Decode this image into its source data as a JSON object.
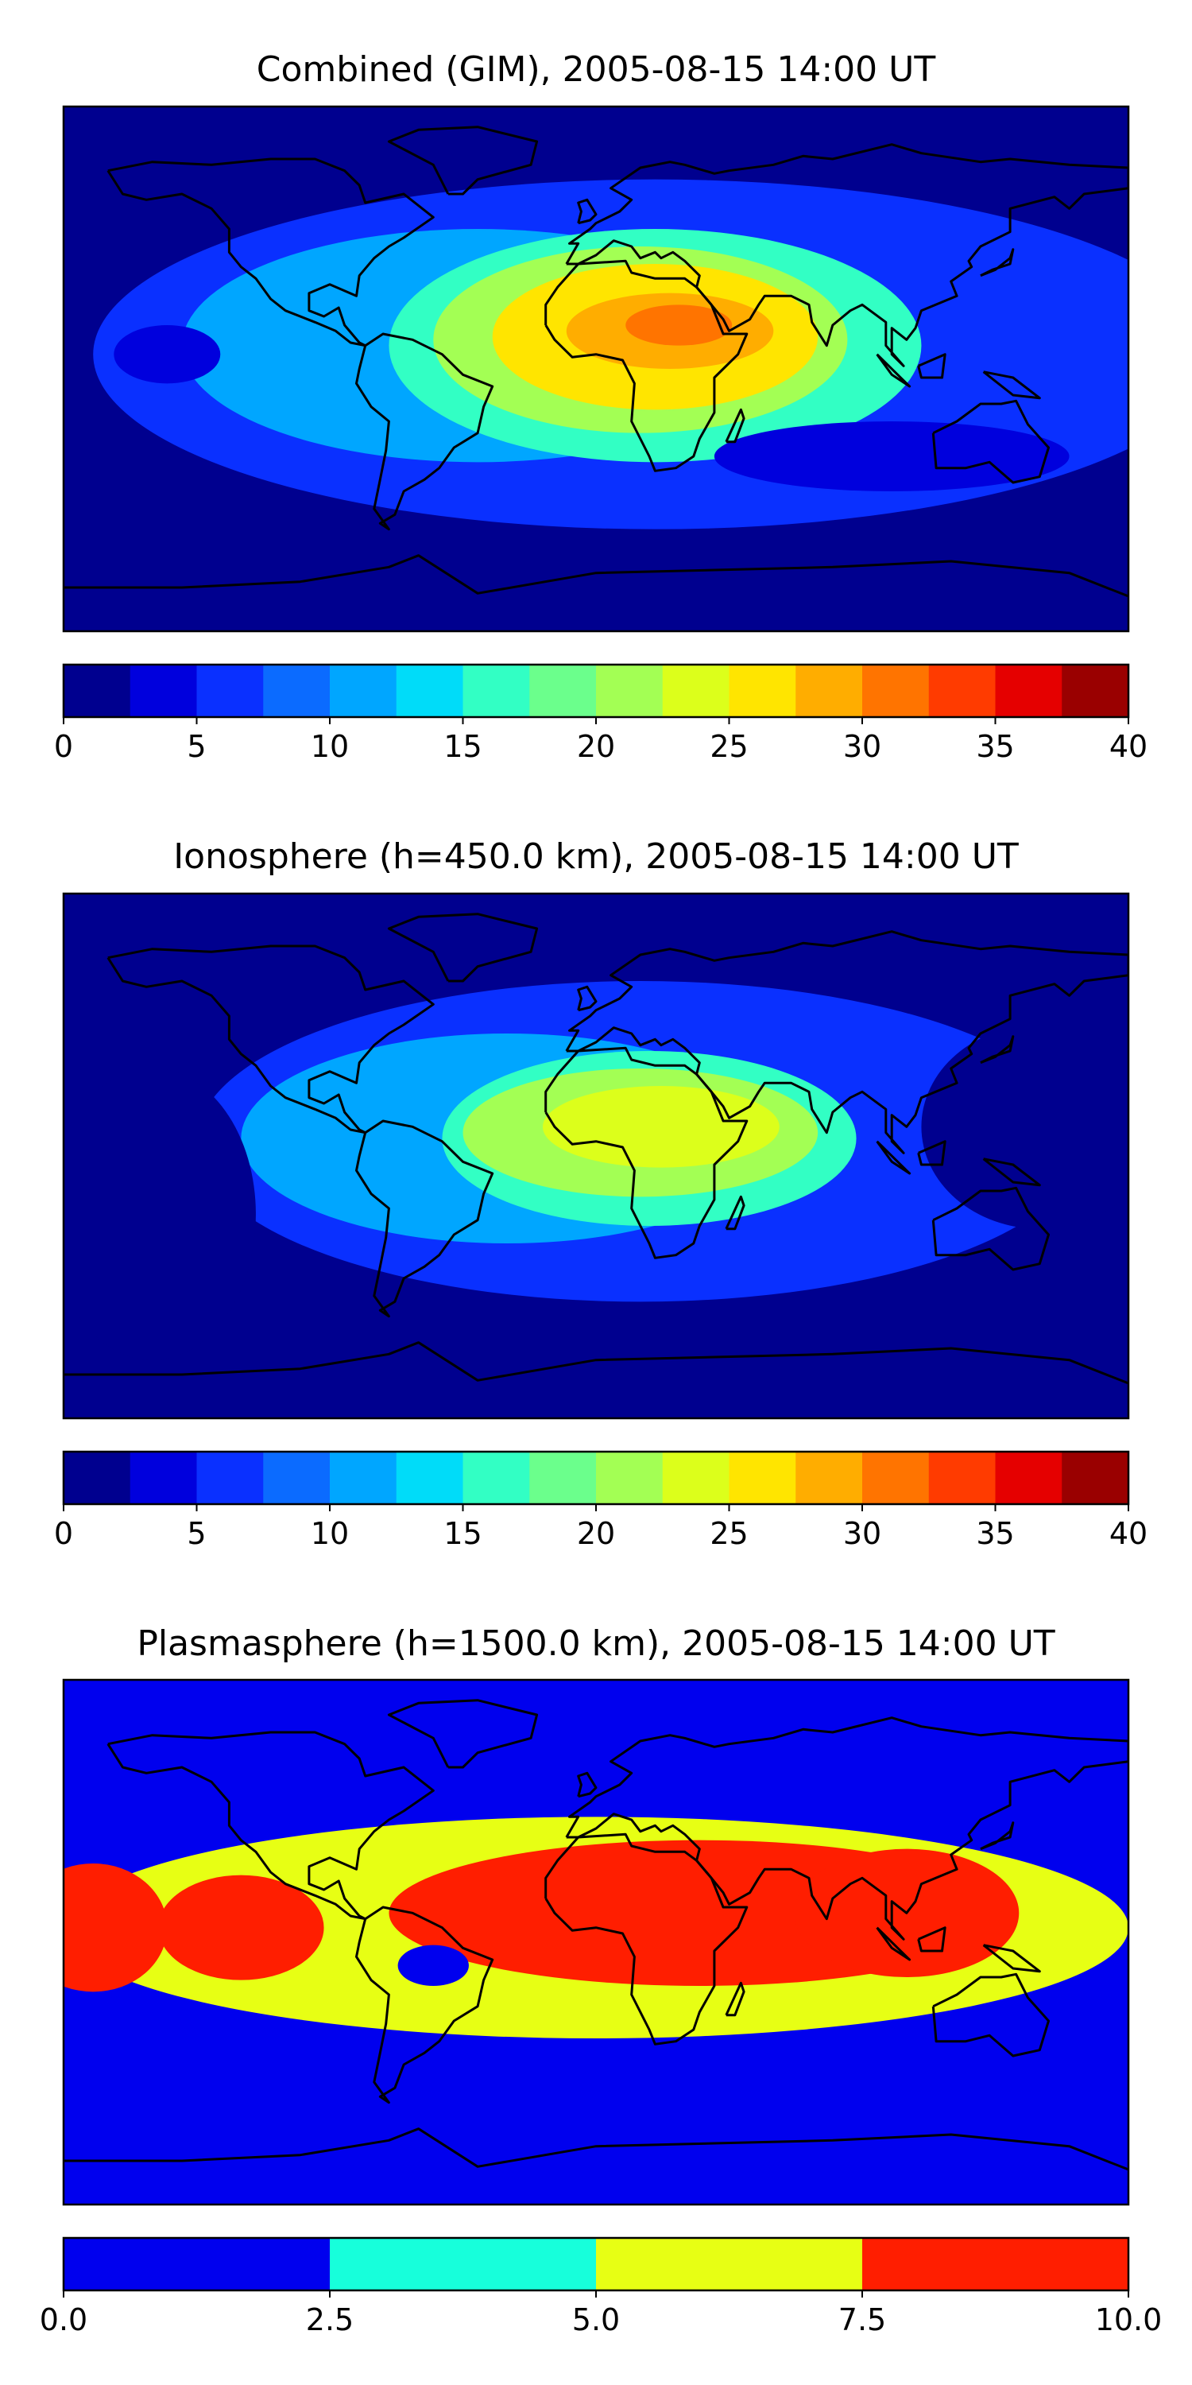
{
  "chart_data": [
    {
      "type": "heatmap",
      "title": "Combined (GIM), 2005-08-15 14:00 UT",
      "colorbar": {
        "levels": [
          0,
          2.5,
          5,
          7.5,
          10,
          12.5,
          15,
          17.5,
          20,
          22.5,
          25,
          27.5,
          30,
          32.5,
          35,
          37.5,
          40
        ],
        "colors": [
          "#00008f",
          "#0000dd",
          "#0a30ff",
          "#0b6bff",
          "#00a6ff",
          "#00dcf9",
          "#32ffc4",
          "#6bff8c",
          "#a3ff54",
          "#dcff1b",
          "#ffe500",
          "#ffad00",
          "#ff7400",
          "#ff3b00",
          "#e50000",
          "#9a0000"
        ],
        "tick_labels": [
          "0",
          "5",
          "10",
          "15",
          "20",
          "25",
          "30",
          "35",
          "40"
        ]
      },
      "max_region": {
        "lon": 25,
        "lat": 14,
        "value": 31
      },
      "min_value": 1
    },
    {
      "type": "heatmap",
      "title": "Ionosphere  (h=450.0 km), 2005-08-15 14:00 UT",
      "colorbar": {
        "levels": [
          0,
          2.5,
          5,
          7.5,
          10,
          12.5,
          15,
          17.5,
          20,
          22.5,
          25,
          27.5,
          30,
          32.5,
          35,
          37.5,
          40
        ],
        "colors": [
          "#00008f",
          "#0000dd",
          "#0a30ff",
          "#0b6bff",
          "#00a6ff",
          "#00dcf9",
          "#32ffc4",
          "#6bff8c",
          "#a3ff54",
          "#dcff1b",
          "#ffe500",
          "#ffad00",
          "#ff7400",
          "#ff3b00",
          "#e50000",
          "#9a0000"
        ],
        "tick_labels": [
          "0",
          "5",
          "10",
          "15",
          "20",
          "25",
          "30",
          "35",
          "40"
        ]
      },
      "max_region": {
        "lon": 22,
        "lat": 10,
        "value": 26
      },
      "min_value": 1
    },
    {
      "type": "heatmap",
      "title": "Plasmasphere (h=1500.0 km), 2005-08-15 14:00 UT",
      "colorbar": {
        "levels": [
          0,
          2.5,
          5,
          7.5,
          10
        ],
        "colors": [
          "#0000ee",
          "#17ffdb",
          "#e7ff14",
          "#ff1e00"
        ],
        "tick_labels": [
          "0.0",
          "2.5",
          "5.0",
          "7.5",
          "10.0"
        ]
      },
      "max_region": {
        "lon": 105,
        "lat": 10,
        "value": 8.5
      },
      "min_value": 1
    }
  ]
}
